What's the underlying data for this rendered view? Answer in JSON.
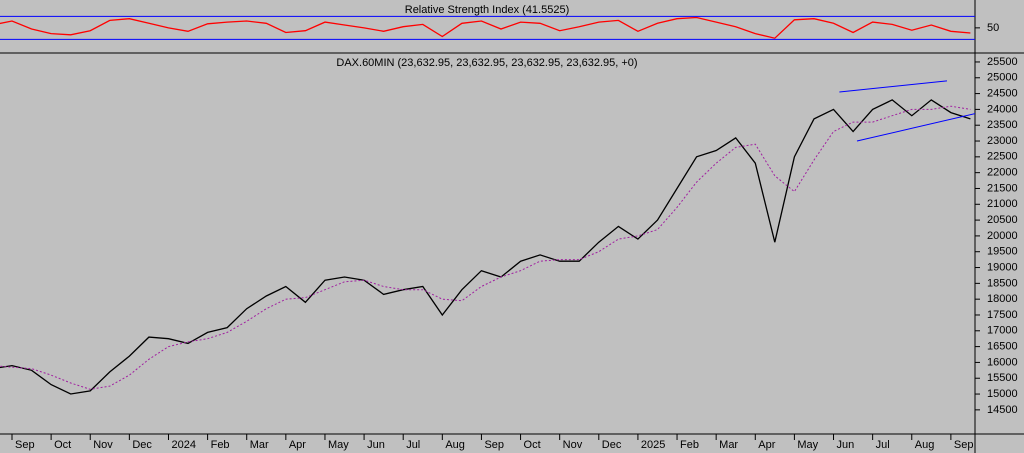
{
  "chart_data": [
    {
      "type": "line",
      "title": "Relative Strength Index (41.5525)",
      "series": [
        {
          "color": "#ff0000",
          "values": [
            55,
            62,
            48,
            40,
            38,
            45,
            63,
            66,
            58,
            50,
            44,
            57,
            60,
            62,
            58,
            42,
            45,
            60,
            55,
            50,
            44,
            52,
            56,
            35,
            58,
            62,
            48,
            60,
            58,
            45,
            52,
            60,
            63,
            44,
            58,
            66,
            68,
            60,
            52,
            40,
            32,
            64,
            66,
            58,
            42,
            60,
            56,
            46,
            55,
            44,
            41
          ]
        }
      ],
      "ylim": [
        8,
        95
      ],
      "yticks": [
        50
      ],
      "levels": [
        30,
        70
      ],
      "level_color": "#0000ff"
    },
    {
      "type": "line",
      "title": "DAX.60MIN (23,632.95, 23,632.95, 23,632.95, 23,632.95, +0)",
      "categories": [
        null,
        "Sep",
        null,
        "Oct",
        null,
        "Nov",
        null,
        "Dec",
        null,
        "2024",
        null,
        "Feb",
        null,
        "Mar",
        null,
        "Apr",
        null,
        "May",
        null,
        "Jun",
        null,
        "Jul",
        null,
        "Aug",
        null,
        "Sep",
        null,
        "Oct",
        null,
        "Nov",
        null,
        "Dec",
        null,
        "2025",
        null,
        "Feb",
        null,
        "Mar",
        null,
        "Apr",
        null,
        "May",
        null,
        "Jun",
        null,
        "Jul",
        null,
        "Aug",
        null,
        "Sep",
        null
      ],
      "series": [
        {
          "color": "#000000",
          "values": [
            15800,
            15900,
            15750,
            15300,
            15000,
            15100,
            15700,
            16200,
            16800,
            16750,
            16600,
            16950,
            17100,
            17700,
            18100,
            18400,
            17900,
            18600,
            18700,
            18600,
            18150,
            18300,
            18400,
            17500,
            18300,
            18900,
            18700,
            19200,
            19400,
            19200,
            19200,
            19800,
            20300,
            19900,
            20500,
            21500,
            22500,
            22700,
            23100,
            22300,
            19800,
            22500,
            23700,
            24000,
            23300,
            24000,
            24300,
            23800,
            24300,
            23900,
            23700
          ]
        },
        {
          "color": "#a020a0",
          "dashed": true,
          "values": [
            15900,
            15850,
            15800,
            15600,
            15350,
            15150,
            15250,
            15600,
            16100,
            16500,
            16650,
            16750,
            16950,
            17300,
            17700,
            18000,
            18050,
            18300,
            18550,
            18600,
            18400,
            18300,
            18300,
            18000,
            17950,
            18400,
            18700,
            18900,
            19200,
            19250,
            19250,
            19500,
            19900,
            20000,
            20200,
            20900,
            21700,
            22300,
            22800,
            22900,
            21900,
            21400,
            22400,
            23300,
            23600,
            23600,
            23800,
            24000,
            24000,
            24100,
            24000
          ]
        }
      ],
      "trendlines": [
        {
          "color": "#0000ff",
          "x": [
            43.3,
            48.8
          ],
          "y": [
            24550,
            24900
          ]
        },
        {
          "color": "#0000ff",
          "x": [
            44.2,
            51.5
          ],
          "y": [
            23000,
            24050
          ]
        }
      ],
      "ylim": [
        13800,
        25720
      ],
      "yticks": [
        14500,
        15000,
        15500,
        16000,
        16500,
        17000,
        17500,
        18000,
        18500,
        19000,
        19500,
        20000,
        20500,
        21000,
        21500,
        22000,
        22500,
        23000,
        23500,
        24000,
        24500,
        25000,
        25500
      ]
    }
  ]
}
